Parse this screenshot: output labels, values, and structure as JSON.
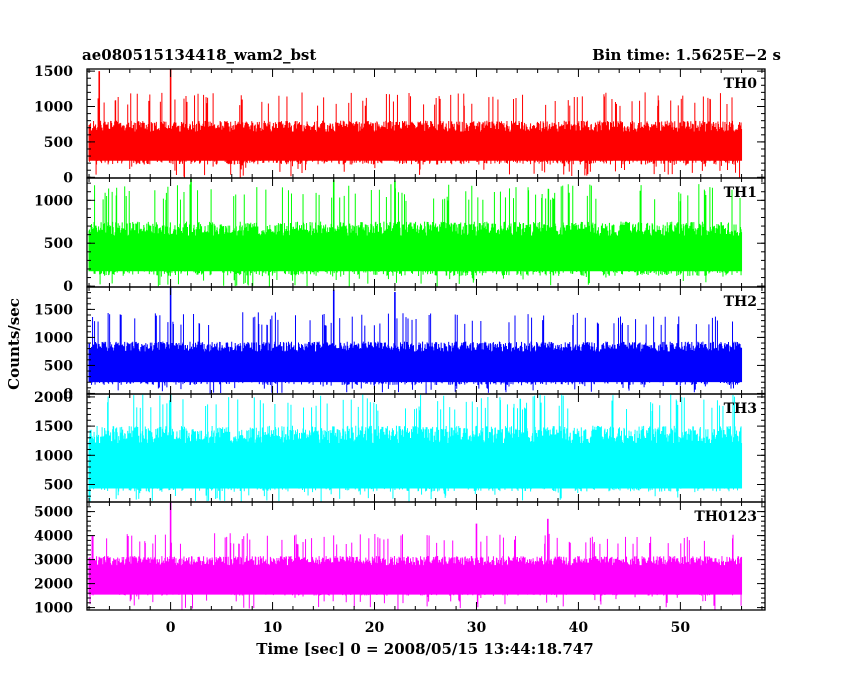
{
  "chart_data": {
    "type": "line",
    "title_left": "ae080515134418_wam2_bst",
    "title_right": "Bin time: 1.5625E−2 s",
    "xlabel": "Time [sec] 0 = 2008/05/15 13:44:18.747",
    "ylabel": "Counts/sec",
    "xlim": [
      -8.2,
      58.3
    ],
    "x_data_range": [
      -8.0,
      56.0
    ],
    "x_ticks": [
      0,
      10,
      20,
      30,
      40,
      50
    ],
    "panels": [
      {
        "label": "TH0",
        "color": "#ff0000",
        "ylim": [
          -10,
          1530
        ],
        "y_ticks": [
          0,
          500,
          1000,
          1500
        ],
        "baseline": 180,
        "level": 560,
        "noise": 200,
        "peak": 1200,
        "spikes": [
          [
            -7.0,
            1500
          ],
          [
            0.0,
            1560
          ]
        ]
      },
      {
        "label": "TH1",
        "color": "#00ff00",
        "ylim": [
          -10,
          1260
        ],
        "y_ticks": [
          0,
          500,
          1000
        ],
        "baseline": 120,
        "level": 500,
        "noise": 210,
        "peak": 1190,
        "spikes": [
          [
            2.0,
            1250
          ],
          [
            16.0,
            1240
          ],
          [
            22.0,
            1230
          ]
        ]
      },
      {
        "label": "TH2",
        "color": "#0000ff",
        "ylim": [
          -10,
          1900
        ],
        "y_ticks": [
          0,
          500,
          1000,
          1500
        ],
        "baseline": 150,
        "level": 650,
        "noise": 230,
        "peak": 1450,
        "spikes": [
          [
            0.0,
            1900
          ],
          [
            16.0,
            1850
          ],
          [
            22.0,
            1810
          ]
        ]
      },
      {
        "label": "TH3",
        "color": "#00ffff",
        "ylim": [
          200,
          2050
        ],
        "y_ticks": [
          500,
          1000,
          1500,
          2000
        ],
        "baseline": 380,
        "level": 1050,
        "noise": 380,
        "peak": 2050,
        "spikes": [
          [
            0.0,
            2200
          ]
        ]
      },
      {
        "label": "TH0123",
        "color": "#ff00ff",
        "ylim": [
          900,
          5400
        ],
        "y_ticks": [
          1000,
          2000,
          3000,
          4000,
          5000
        ],
        "baseline": 1500,
        "level": 2550,
        "noise": 500,
        "peak": 4100,
        "spikes": [
          [
            0.0,
            5500
          ],
          [
            30.0,
            4500
          ],
          [
            37.0,
            4700
          ]
        ]
      }
    ]
  }
}
